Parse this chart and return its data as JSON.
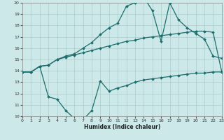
{
  "xlabel": "Humidex (Indice chaleur)",
  "bg_color": "#cde8e8",
  "grid_color": "#aacccc",
  "line_color": "#1a6e6e",
  "ylim": [
    10,
    20
  ],
  "xlim": [
    0,
    23
  ],
  "yticks": [
    10,
    11,
    12,
    13,
    14,
    15,
    16,
    17,
    18,
    19,
    20
  ],
  "xticks": [
    0,
    1,
    2,
    3,
    4,
    5,
    6,
    7,
    8,
    9,
    10,
    11,
    12,
    13,
    14,
    15,
    16,
    17,
    18,
    19,
    20,
    21,
    22,
    23
  ],
  "line1_x": [
    0,
    1,
    2,
    3,
    4,
    5,
    6,
    7,
    8,
    9,
    10,
    11,
    12,
    13,
    14,
    15,
    16,
    17,
    18,
    19,
    20,
    21,
    22,
    23
  ],
  "line1_y": [
    13.9,
    13.9,
    14.4,
    14.5,
    15.0,
    15.2,
    15.4,
    15.6,
    15.8,
    16.0,
    16.2,
    16.4,
    16.6,
    16.7,
    16.9,
    17.0,
    17.1,
    17.2,
    17.3,
    17.4,
    17.5,
    17.5,
    17.4,
    13.9
  ],
  "line2_x": [
    0,
    1,
    2,
    3,
    4,
    5,
    6,
    7,
    8,
    9,
    10,
    11,
    12,
    13,
    14,
    15,
    16,
    17,
    18,
    19,
    20,
    21,
    22,
    23
  ],
  "line2_y": [
    13.9,
    13.9,
    14.4,
    14.5,
    15.0,
    15.3,
    15.5,
    16.0,
    16.5,
    17.2,
    17.8,
    18.2,
    19.7,
    20.0,
    20.5,
    19.3,
    16.6,
    20.0,
    18.5,
    17.8,
    17.3,
    16.8,
    15.3,
    15.1
  ],
  "line3_x": [
    0,
    1,
    2,
    3,
    4,
    5,
    6,
    7,
    8,
    9,
    10,
    11,
    12,
    13,
    14,
    15,
    16,
    17,
    18,
    19,
    20,
    21,
    22,
    23
  ],
  "line3_y": [
    13.9,
    13.9,
    14.4,
    11.7,
    11.5,
    10.5,
    9.8,
    9.7,
    10.5,
    13.1,
    12.2,
    12.5,
    12.7,
    13.0,
    13.2,
    13.3,
    13.4,
    13.5,
    13.6,
    13.7,
    13.8,
    13.8,
    13.9,
    13.9
  ]
}
